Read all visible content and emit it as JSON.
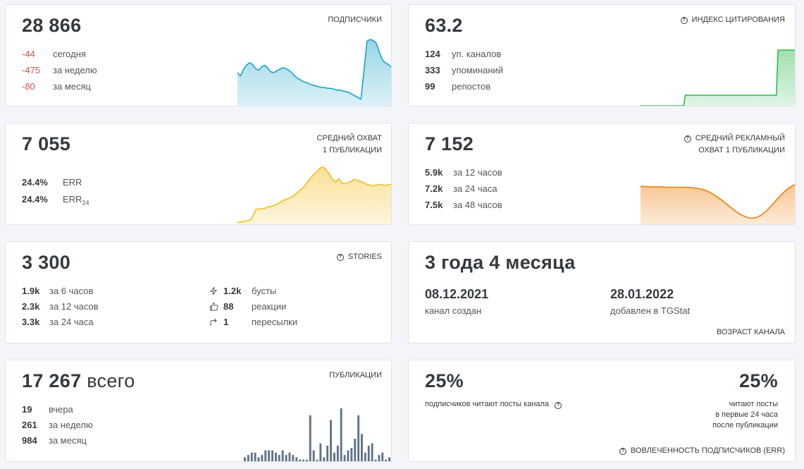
{
  "cards": {
    "subscribers": {
      "value": "28 866",
      "label": "ПОДПИСЧИКИ",
      "rows": [
        {
          "value": "-44",
          "text": "сегодня"
        },
        {
          "value": "-475",
          "text": "за неделю"
        },
        {
          "value": "-80",
          "text": "за месяц"
        }
      ],
      "color": "#1aa3c8"
    },
    "citation": {
      "value": "63.2",
      "label": "ИНДЕКС ЦИТИРОВАНИЯ",
      "rows": [
        {
          "value": "124",
          "text": "уп. каналов"
        },
        {
          "value": "333",
          "text": "упоминаний"
        },
        {
          "value": "99",
          "text": "репостов"
        }
      ],
      "color": "#2dbb4e"
    },
    "reach": {
      "value": "7 055",
      "label_line1": "СРЕДНИЙ ОХВАТ",
      "label_line2": "1 ПУБЛИКАЦИИ",
      "rows": [
        {
          "value": "24.4%",
          "text": "ERR"
        },
        {
          "value": "24.4%",
          "text": "ERR",
          "subscript": "24"
        }
      ],
      "color": "#f5be1a"
    },
    "ad_reach": {
      "value": "7 152",
      "label_line1": "СРЕДНИЙ РЕКЛАМНЫЙ",
      "label_line2": "ОХВАТ 1 ПУБЛИКАЦИИ",
      "rows": [
        {
          "value": "5.9k",
          "text": "за 12 часов"
        },
        {
          "value": "7.2k",
          "text": "за 24 часа"
        },
        {
          "value": "7.5k",
          "text": "за 48 часов"
        }
      ],
      "color": "#f07f0a"
    },
    "stories": {
      "value": "3 300",
      "label": "STORIES",
      "rows": [
        {
          "value": "1.9k",
          "text": "за 6 часов"
        },
        {
          "value": "2.3k",
          "text": "за 12 часов"
        },
        {
          "value": "3.3k",
          "text": "за 24 часа"
        }
      ],
      "rows_right": [
        {
          "icon": "lightning-icon",
          "value": "1.2k",
          "text": "бусты"
        },
        {
          "icon": "thumbs-up-icon",
          "value": "88",
          "text": "реакции"
        },
        {
          "icon": "share-arrow-icon",
          "value": "1",
          "text": "пересылки"
        }
      ]
    },
    "age": {
      "value": "3 года 4 месяца",
      "created_date": "08.12.2021",
      "created_text": "канал создан",
      "added_date": "28.01.2022",
      "added_text": "добавлен в TGStat",
      "label": "ВОЗРАСТ КАНАЛА"
    },
    "posts": {
      "value": "17 267",
      "value_suffix": "всего",
      "label": "ПУБЛИКАЦИИ",
      "rows": [
        {
          "value": "19",
          "text": "вчера"
        },
        {
          "value": "261",
          "text": "за неделю"
        },
        {
          "value": "984",
          "text": "за месяц"
        }
      ],
      "color": "#5f7388"
    },
    "engagement": {
      "value_left": "25%",
      "text_left": "подписчиков читают посты канала",
      "value_right": "25%",
      "text_right_1": "читают посты",
      "text_right_2": "в первые 24 часа",
      "text_right_3": "после публикации",
      "label": "ВОВЛЕЧЕННОСТЬ ПОДПИСЧИКОВ (ERR)"
    }
  },
  "charts": {
    "subscribers_series": [
      40,
      36,
      44,
      49,
      52,
      50,
      45,
      43,
      47,
      49,
      46,
      41,
      40,
      42,
      44,
      46,
      45,
      43,
      40,
      36,
      33,
      31,
      29,
      28,
      26,
      25,
      24,
      23,
      22,
      22,
      21,
      21,
      20,
      19,
      19,
      18,
      17,
      16,
      14,
      12,
      10,
      8,
      42,
      78,
      80,
      79,
      76,
      66,
      56,
      52,
      50,
      47
    ],
    "citation_series": [
      0,
      0,
      0,
      0,
      0,
      0,
      0,
      0,
      0,
      0,
      0,
      0,
      0,
      0,
      0,
      0,
      0,
      0,
      0,
      0,
      0,
      0,
      0,
      0,
      0,
      0,
      0,
      0,
      19,
      19,
      19,
      19,
      19,
      19,
      19,
      19,
      19,
      19,
      19,
      19,
      19,
      19,
      19,
      19,
      19,
      19,
      19,
      19,
      19,
      19,
      19,
      19,
      19,
      19,
      19,
      19,
      19,
      19,
      19,
      19,
      19,
      19,
      19,
      19,
      19,
      19,
      19,
      19,
      19,
      19,
      19,
      19,
      19,
      19,
      19,
      19,
      19,
      19,
      19,
      19,
      19,
      19,
      19,
      19,
      19,
      19,
      100,
      100,
      100,
      100,
      100,
      100,
      100,
      100,
      100,
      100,
      100,
      100
    ],
    "reach_series": [
      3,
      4,
      5,
      6,
      7,
      14,
      26,
      27,
      27,
      28,
      31,
      31,
      33,
      35,
      39,
      42,
      44,
      46,
      49,
      53,
      58,
      62,
      68,
      76,
      82,
      88,
      93,
      99,
      100,
      94,
      87,
      78,
      74,
      80,
      72,
      71,
      73,
      75,
      79,
      77,
      75,
      73,
      70,
      69,
      67,
      68,
      70,
      69,
      68,
      69,
      70
    ],
    "ad_reach_series": [
      88,
      88,
      87,
      87,
      87,
      87,
      86,
      86,
      86,
      86,
      86,
      86,
      85,
      84,
      82,
      79,
      75,
      69,
      62,
      55,
      47,
      39,
      31,
      24,
      19,
      15,
      14,
      16,
      21,
      29,
      39,
      50,
      61,
      72,
      81,
      88,
      93
    ],
    "posts_series": [
      2,
      3,
      4,
      4,
      2,
      3,
      5,
      5,
      5,
      4,
      3,
      5,
      3,
      4,
      3,
      2,
      1,
      1,
      1,
      20,
      5,
      1,
      8,
      2,
      7,
      18,
      4,
      7,
      23,
      3,
      5,
      6,
      10,
      20,
      12,
      4,
      7,
      8,
      1,
      3,
      4,
      1,
      2
    ]
  }
}
